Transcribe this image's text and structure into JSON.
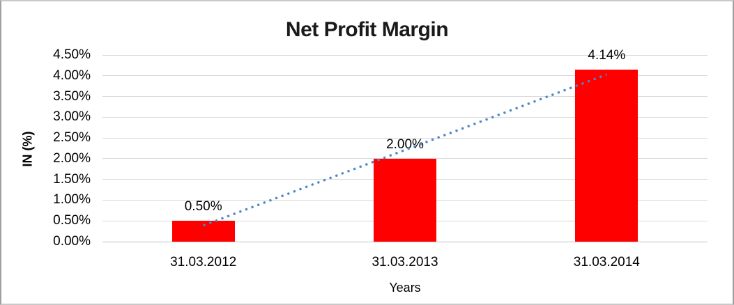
{
  "chart_data": {
    "type": "bar",
    "title": "Net Profit Margin",
    "xlabel": "Years",
    "ylabel": "IN (%)",
    "categories": [
      "31.03.2012",
      "31.03.2013",
      "31.03.2014"
    ],
    "values": [
      0.5,
      2.0,
      4.14
    ],
    "data_labels": [
      "0.50%",
      "2.00%",
      "4.14%"
    ],
    "ytick_labels": [
      "0.00%",
      "0.50%",
      "1.00%",
      "1.50%",
      "2.00%",
      "2.50%",
      "3.00%",
      "3.50%",
      "4.00%",
      "4.50%"
    ],
    "ylim": [
      0,
      4.5
    ],
    "grid": true,
    "legend": "none",
    "trendline": {
      "type": "linear",
      "style": "dotted",
      "start_value": 0.39,
      "end_value": 4.03,
      "color": "#4f86c6"
    },
    "colors": {
      "bar": "#ff0000",
      "gridline": "#d9d9d9",
      "axis_line": "#bfbfbf",
      "title_text": "#1a1a1a",
      "tick_text": "#000000"
    }
  }
}
